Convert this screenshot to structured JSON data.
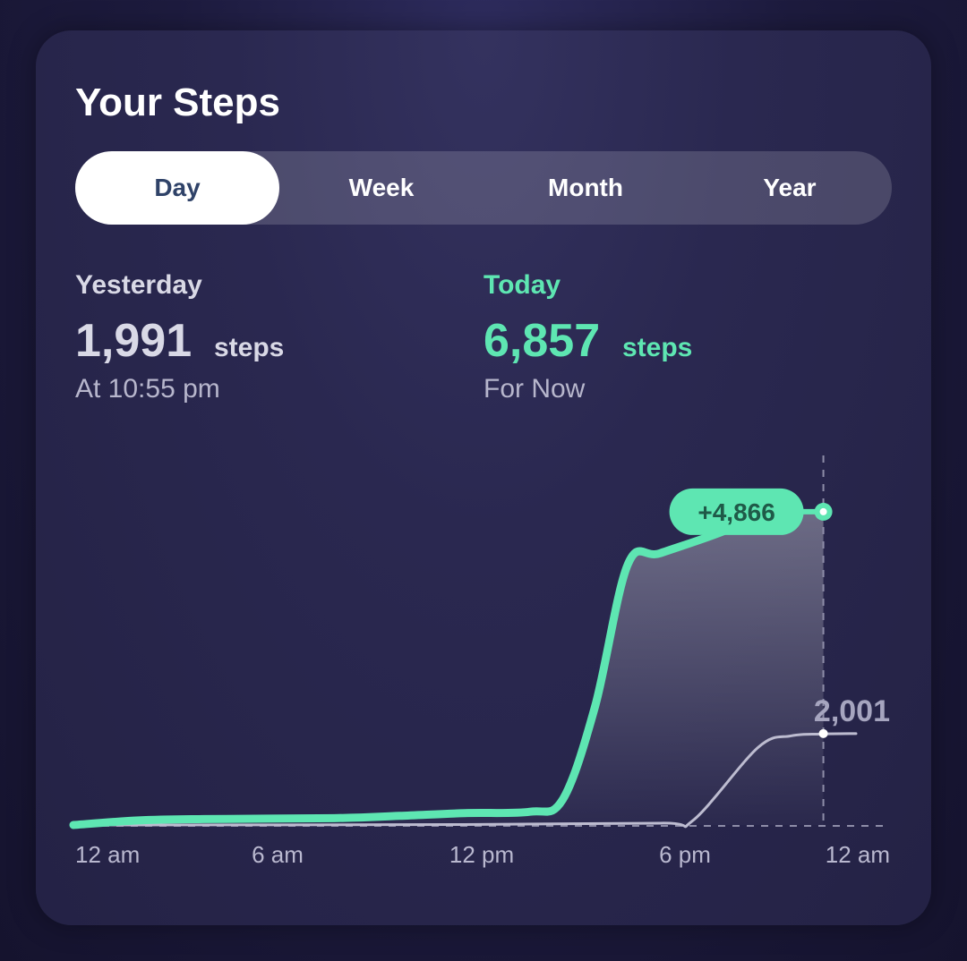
{
  "title": "Your Steps",
  "tabs": [
    {
      "label": "Day",
      "active": true
    },
    {
      "label": "Week",
      "active": false
    },
    {
      "label": "Month",
      "active": false
    },
    {
      "label": "Year",
      "active": false
    }
  ],
  "yesterday": {
    "label": "Yesterday",
    "value": "1,991",
    "unit": "steps",
    "sub": "At 10:55 pm"
  },
  "today": {
    "label": "Today",
    "value": "6,857",
    "unit": "steps",
    "sub": "For Now"
  },
  "colors": {
    "accent": "#5ee6b2",
    "yesterday_line": "#bdbcd0",
    "active_tab_text": "#2f4268"
  },
  "chart_data": {
    "type": "line",
    "x_axis": {
      "ticks": [
        "12 am",
        "6 am",
        "12 pm",
        "6 pm",
        "12 am"
      ],
      "range_hours": [
        0,
        24
      ]
    },
    "y_axis": {
      "range_steps": [
        0,
        7600
      ]
    },
    "series": [
      {
        "name": "Today",
        "points": [
          [
            0,
            0
          ],
          [
            2,
            100
          ],
          [
            4,
            130
          ],
          [
            8,
            150
          ],
          [
            10,
            200
          ],
          [
            12,
            260
          ],
          [
            14,
            290
          ],
          [
            15,
            550
          ],
          [
            16,
            2600
          ],
          [
            17,
            5700
          ],
          [
            18,
            5950
          ],
          [
            20,
            6450
          ],
          [
            21,
            6857
          ]
        ]
      },
      {
        "name": "Yesterday",
        "points": [
          [
            0,
            0
          ],
          [
            12,
            10
          ],
          [
            18,
            40
          ],
          [
            19,
            100
          ],
          [
            21,
            1700
          ],
          [
            22,
            1950
          ],
          [
            22.92,
            1991
          ],
          [
            24,
            2001
          ]
        ]
      }
    ],
    "annotations": {
      "difference_label": "+4,866",
      "yesterday_value_label": "2,001",
      "marker_hour": 23
    }
  }
}
